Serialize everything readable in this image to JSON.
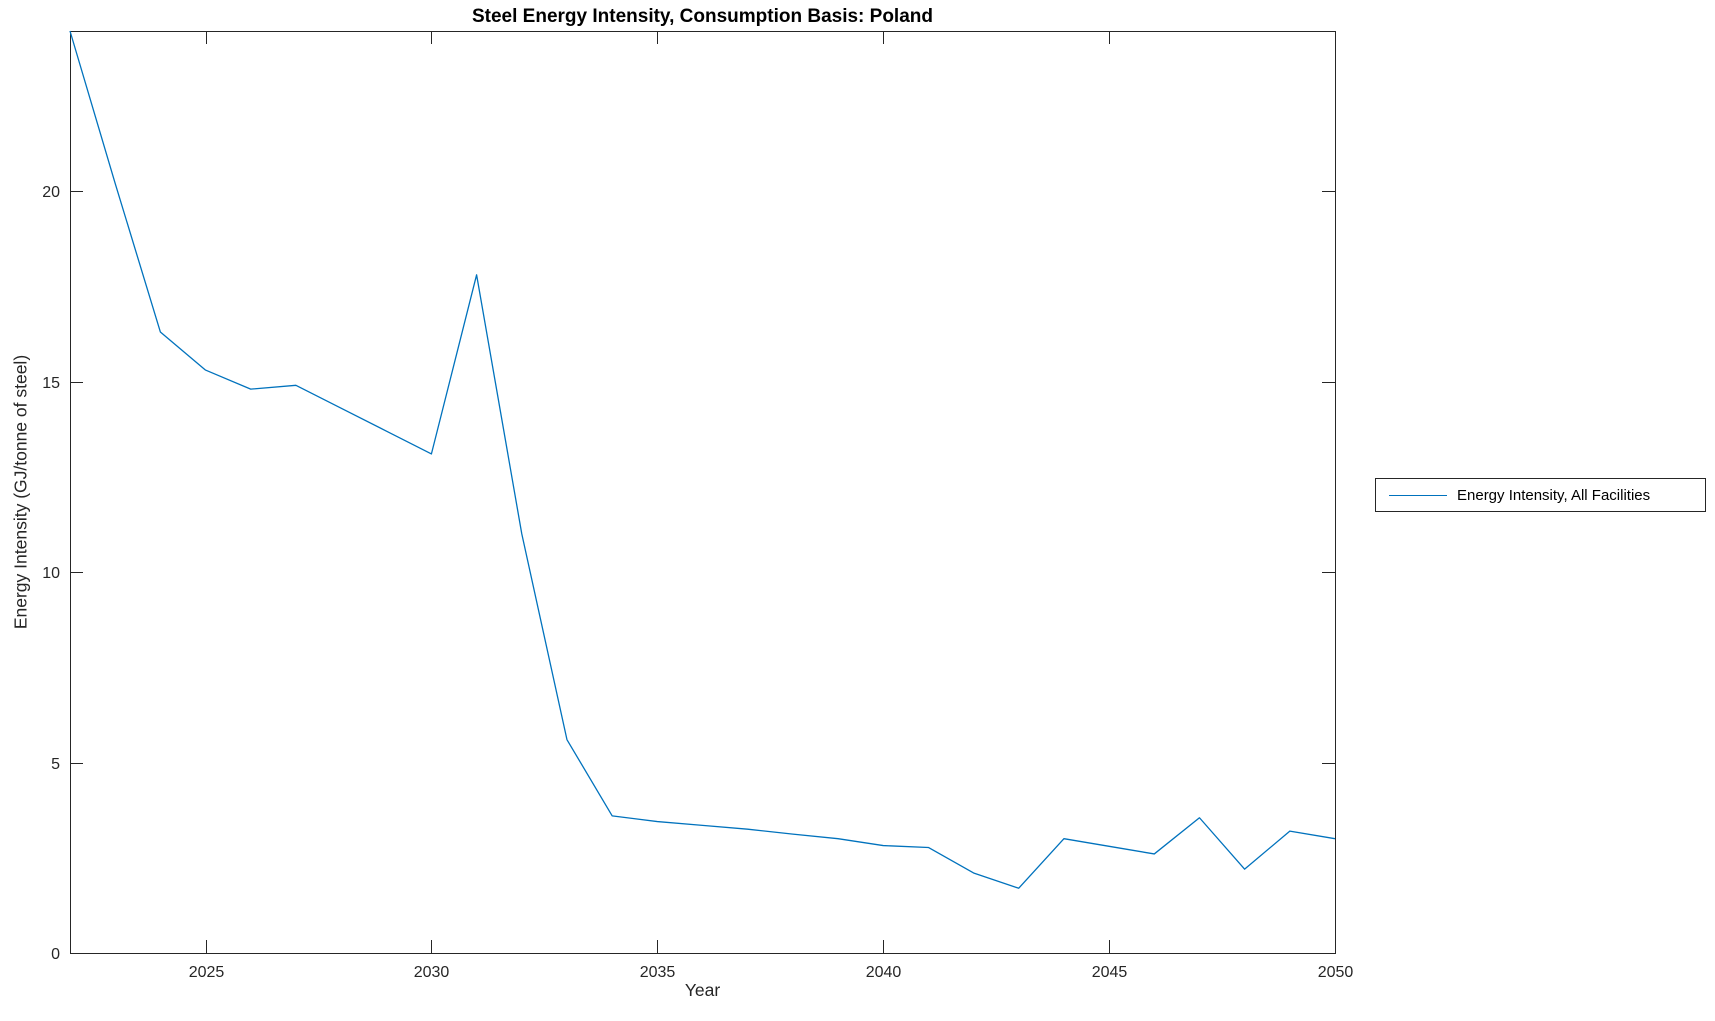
{
  "chart_data": {
    "type": "line",
    "title": "Steel Energy Intensity, Consumption Basis: Poland",
    "xlabel": "Year",
    "ylabel": "Energy Intensity (GJ/tonne of steel)",
    "xlim": [
      2022,
      2050
    ],
    "ylim": [
      0,
      24.2
    ],
    "xticks": [
      2025,
      2030,
      2035,
      2040,
      2045,
      2050
    ],
    "yticks": [
      0,
      5,
      10,
      15,
      20
    ],
    "grid": false,
    "box": true,
    "legend_position": "outside-right",
    "x": [
      2022,
      2023,
      2024,
      2025,
      2026,
      2027,
      2028,
      2029,
      2030,
      2031,
      2032,
      2033,
      2034,
      2035,
      2036,
      2037,
      2038,
      2039,
      2040,
      2041,
      2042,
      2043,
      2044,
      2045,
      2046,
      2047,
      2048,
      2049,
      2050
    ],
    "series": [
      {
        "name": "Energy Intensity, All Facilities",
        "color": "#0072BD",
        "values": [
          24.2,
          20.2,
          16.3,
          15.3,
          14.8,
          14.9,
          14.3,
          13.7,
          13.1,
          17.8,
          11.0,
          5.6,
          3.6,
          3.45,
          3.35,
          3.25,
          3.12,
          3.0,
          2.82,
          2.77,
          2.1,
          1.7,
          3.0,
          2.8,
          2.6,
          3.55,
          2.2,
          3.2,
          3.0
        ]
      }
    ]
  },
  "legend": {
    "items": [
      {
        "label": "Energy Intensity, All Facilities",
        "color": "#0072BD"
      }
    ]
  },
  "axes": {
    "color": "#262626",
    "tick_label_color": "#262626",
    "background": "#ffffff"
  }
}
